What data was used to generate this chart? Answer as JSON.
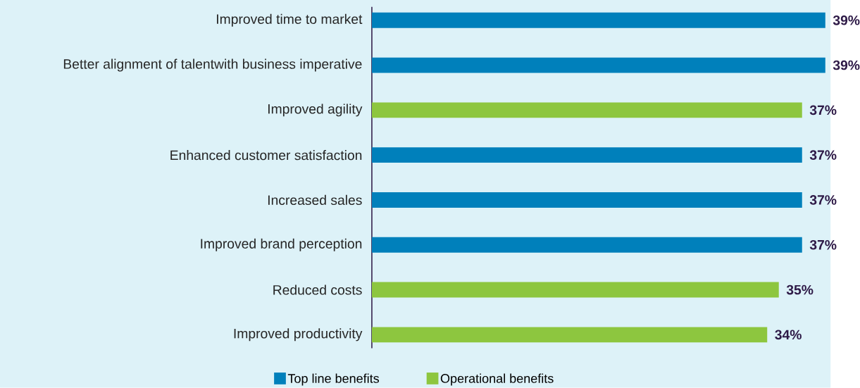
{
  "chart_data": {
    "type": "bar",
    "orientation": "horizontal",
    "categories": [
      "Improved time to market",
      "Better alignment of talentwith business imperative",
      "Improved agility",
      "Enhanced customer satisfaction",
      "Increased sales",
      "Improved brand perception",
      "Reduced costs",
      "Improved productivity"
    ],
    "series": [
      {
        "name": "Top line benefits",
        "color": "#0080bb",
        "values": [
          39,
          39,
          null,
          37,
          37,
          37,
          null,
          null
        ],
        "value_labels": [
          "39%",
          "39%",
          null,
          "37%",
          "37%",
          "37%",
          null,
          null
        ]
      },
      {
        "name": "Operational benefits",
        "color": "#8dc63f",
        "values": [
          null,
          null,
          37,
          null,
          null,
          null,
          35,
          34
        ],
        "value_labels": [
          null,
          null,
          "37%",
          null,
          null,
          null,
          "35%",
          "34%"
        ]
      }
    ],
    "tick_labels": "y",
    "grid": false,
    "legend": "bottom"
  }
}
